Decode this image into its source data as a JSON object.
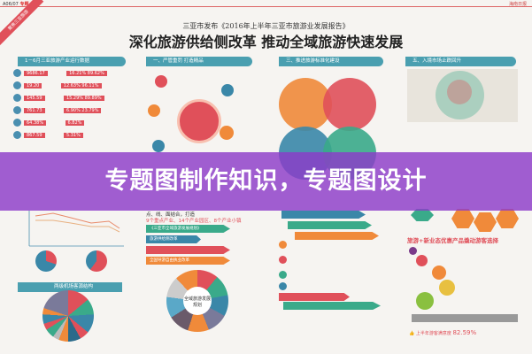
{
  "header": {
    "page_code": "A06/07",
    "section": "专题",
    "brand": "海南日报",
    "ribbon": "聚焦三亚旅游"
  },
  "subtitle": "三亚市发布《2016年上半年三亚市旅游业发展报告》",
  "title": "深化旅游供给侧改革  推动全域旅游快速发展",
  "banner": "专题图制作知识，专题图设计",
  "col1": {
    "header": "1－6月三亚旅游产业运行数据",
    "stats": [
      {
        "value": "9686.17",
        "pct": "16.21%  89.62%"
      },
      {
        "value": "19.20",
        "pct": "12.63%  96.11%"
      },
      {
        "value": "145.59",
        "pct": "15.29%  89.89%"
      },
      {
        "value": "761.73",
        "pct": "6.90%  23.79%"
      },
      {
        "value": "64.38%",
        "pct": "6.82%"
      },
      {
        "value": "867.59",
        "pct": "5.31%"
      }
    ],
    "header2": "两级机场客源结构"
  },
  "col2": {
    "header": "一、严管重罚 打造精品",
    "line1": "点、线、面结合，打造",
    "line2": "9个重点产业、14个产业园区、8个产业小镇",
    "arrows": [
      "《三亚市全域旅游发展规划》",
      "旅游供给侧改革",
      "",
      "全国导游自由执业改革"
    ],
    "donut_center": "全域旅游发展规划"
  },
  "col3": {
    "header": "三、推进旅游标准化建设"
  },
  "col4": {
    "header": "五、入境市场止跌回升",
    "tagline": "旅游+新业态优惠产品撬动游客选择",
    "satisfaction_label": "上半年游客满意度",
    "satisfaction": "82.59%"
  },
  "colors": {
    "banner": "#8c3cc8",
    "teal": "#4a9fb0",
    "red": "#e0505a",
    "orange": "#f08a3a",
    "green": "#3aaa8a"
  }
}
